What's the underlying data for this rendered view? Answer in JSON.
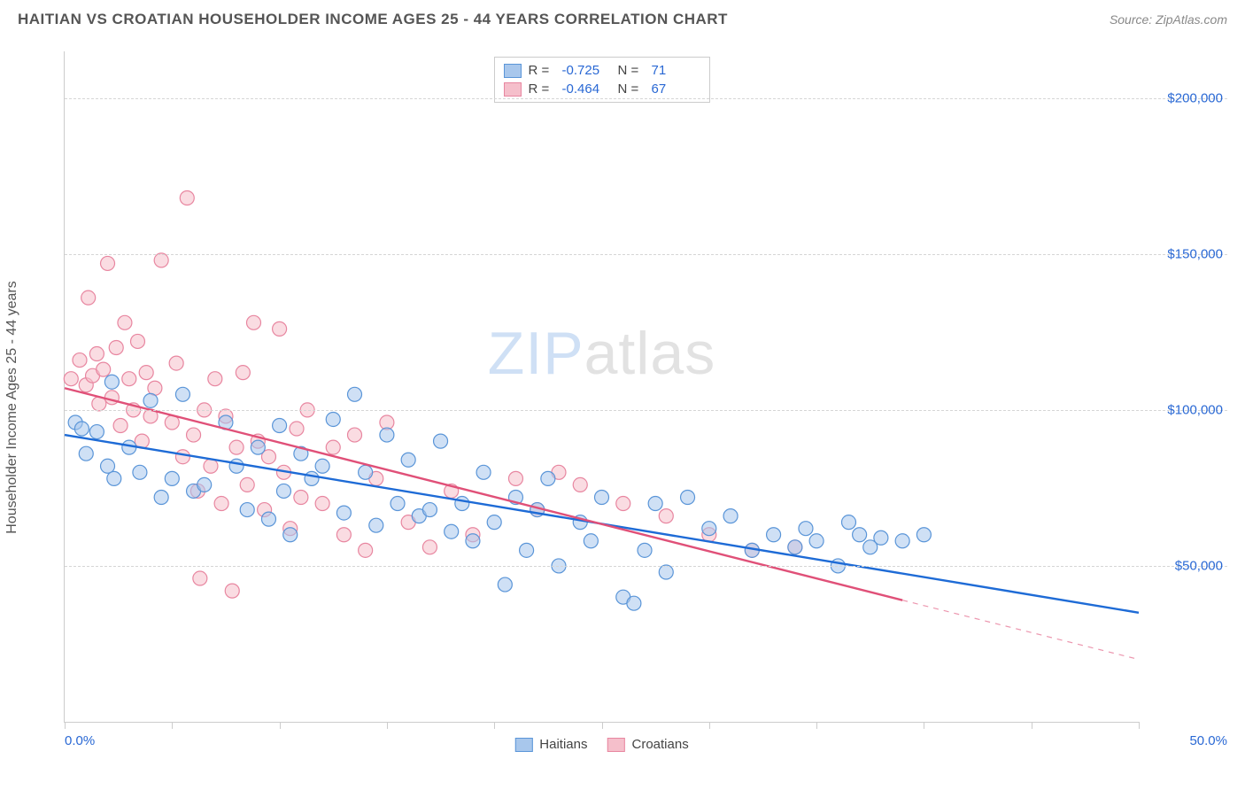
{
  "header": {
    "title": "HAITIAN VS CROATIAN HOUSEHOLDER INCOME AGES 25 - 44 YEARS CORRELATION CHART",
    "source_prefix": "Source: ",
    "source_name": "ZipAtlas.com"
  },
  "watermark": {
    "zip": "ZIP",
    "atlas": "atlas"
  },
  "chart": {
    "type": "scatter",
    "ylabel": "Householder Income Ages 25 - 44 years",
    "xlim": [
      0,
      50
    ],
    "ylim": [
      0,
      215000
    ],
    "x_min_label": "0.0%",
    "x_max_label": "50.0%",
    "x_ticks": [
      0,
      5,
      10,
      15,
      20,
      25,
      30,
      35,
      40,
      45,
      50
    ],
    "y_gridlines": [
      {
        "value": 50000,
        "label": "$50,000"
      },
      {
        "value": 100000,
        "label": "$100,000"
      },
      {
        "value": 150000,
        "label": "$150,000"
      },
      {
        "value": 200000,
        "label": "$200,000"
      }
    ],
    "grid_color": "#d5d5d5",
    "background_color": "#ffffff",
    "label_color": "#2968d4",
    "axis_color": "#cccccc",
    "marker_radius": 8,
    "marker_opacity": 0.55,
    "marker_stroke_width": 1.2,
    "line_width": 2.4,
    "title_fontsize": 17,
    "label_fontsize": 16,
    "tick_fontsize": 15
  },
  "series": [
    {
      "name": "Haitians",
      "fill_color": "#a8c7ec",
      "stroke_color": "#5a95d8",
      "line_color": "#1e6bd6",
      "R": "-0.725",
      "N": "71",
      "regression": {
        "x1": 0,
        "y1": 92000,
        "x2": 50,
        "y2": 35000
      },
      "dashed_extension": null,
      "points": [
        [
          0.5,
          96000
        ],
        [
          0.8,
          94000
        ],
        [
          1.0,
          86000
        ],
        [
          1.5,
          93000
        ],
        [
          2.0,
          82000
        ],
        [
          2.2,
          109000
        ],
        [
          2.3,
          78000
        ],
        [
          3.0,
          88000
        ],
        [
          3.5,
          80000
        ],
        [
          4.0,
          103000
        ],
        [
          4.5,
          72000
        ],
        [
          5.0,
          78000
        ],
        [
          5.5,
          105000
        ],
        [
          6.0,
          74000
        ],
        [
          6.5,
          76000
        ],
        [
          7.5,
          96000
        ],
        [
          8.0,
          82000
        ],
        [
          8.5,
          68000
        ],
        [
          9.0,
          88000
        ],
        [
          9.5,
          65000
        ],
        [
          10.0,
          95000
        ],
        [
          10.2,
          74000
        ],
        [
          10.5,
          60000
        ],
        [
          11.0,
          86000
        ],
        [
          11.5,
          78000
        ],
        [
          12.0,
          82000
        ],
        [
          12.5,
          97000
        ],
        [
          13.0,
          67000
        ],
        [
          13.5,
          105000
        ],
        [
          14.0,
          80000
        ],
        [
          14.5,
          63000
        ],
        [
          15.0,
          92000
        ],
        [
          15.5,
          70000
        ],
        [
          16.0,
          84000
        ],
        [
          16.5,
          66000
        ],
        [
          17.0,
          68000
        ],
        [
          17.5,
          90000
        ],
        [
          18.0,
          61000
        ],
        [
          18.5,
          70000
        ],
        [
          19.0,
          58000
        ],
        [
          19.5,
          80000
        ],
        [
          20.0,
          64000
        ],
        [
          20.5,
          44000
        ],
        [
          21.0,
          72000
        ],
        [
          21.5,
          55000
        ],
        [
          22.0,
          68000
        ],
        [
          22.5,
          78000
        ],
        [
          23.0,
          50000
        ],
        [
          24.0,
          64000
        ],
        [
          24.5,
          58000
        ],
        [
          25.0,
          72000
        ],
        [
          26.0,
          40000
        ],
        [
          27.0,
          55000
        ],
        [
          27.5,
          70000
        ],
        [
          28.0,
          48000
        ],
        [
          29.0,
          72000
        ],
        [
          30.0,
          62000
        ],
        [
          31.0,
          66000
        ],
        [
          32.0,
          55000
        ],
        [
          33.0,
          60000
        ],
        [
          34.0,
          56000
        ],
        [
          35.0,
          58000
        ],
        [
          36.0,
          50000
        ],
        [
          37.0,
          60000
        ],
        [
          38.0,
          59000
        ],
        [
          39.0,
          58000
        ],
        [
          40.0,
          60000
        ],
        [
          36.5,
          64000
        ],
        [
          37.5,
          56000
        ],
        [
          34.5,
          62000
        ],
        [
          26.5,
          38000
        ]
      ]
    },
    {
      "name": "Croatians",
      "fill_color": "#f5bfcb",
      "stroke_color": "#e886a0",
      "line_color": "#e05078",
      "R": "-0.464",
      "N": "67",
      "regression": {
        "x1": 0,
        "y1": 107000,
        "x2": 39,
        "y2": 39000
      },
      "dashed_extension": {
        "x1": 39,
        "y1": 39000,
        "x2": 50,
        "y2": 20000
      },
      "points": [
        [
          0.3,
          110000
        ],
        [
          0.7,
          116000
        ],
        [
          1.0,
          108000
        ],
        [
          1.1,
          136000
        ],
        [
          1.3,
          111000
        ],
        [
          1.5,
          118000
        ],
        [
          1.6,
          102000
        ],
        [
          1.8,
          113000
        ],
        [
          2.0,
          147000
        ],
        [
          2.2,
          104000
        ],
        [
          2.4,
          120000
        ],
        [
          2.6,
          95000
        ],
        [
          2.8,
          128000
        ],
        [
          3.0,
          110000
        ],
        [
          3.2,
          100000
        ],
        [
          3.4,
          122000
        ],
        [
          3.6,
          90000
        ],
        [
          3.8,
          112000
        ],
        [
          4.0,
          98000
        ],
        [
          4.2,
          107000
        ],
        [
          4.5,
          148000
        ],
        [
          5.0,
          96000
        ],
        [
          5.2,
          115000
        ],
        [
          5.5,
          85000
        ],
        [
          5.7,
          168000
        ],
        [
          6.0,
          92000
        ],
        [
          6.2,
          74000
        ],
        [
          6.5,
          100000
        ],
        [
          6.8,
          82000
        ],
        [
          7.0,
          110000
        ],
        [
          7.3,
          70000
        ],
        [
          7.5,
          98000
        ],
        [
          7.8,
          42000
        ],
        [
          6.3,
          46000
        ],
        [
          8.0,
          88000
        ],
        [
          8.3,
          112000
        ],
        [
          8.5,
          76000
        ],
        [
          8.8,
          128000
        ],
        [
          9.0,
          90000
        ],
        [
          9.3,
          68000
        ],
        [
          9.5,
          85000
        ],
        [
          10.0,
          126000
        ],
        [
          10.2,
          80000
        ],
        [
          10.5,
          62000
        ],
        [
          10.8,
          94000
        ],
        [
          11.0,
          72000
        ],
        [
          11.3,
          100000
        ],
        [
          12.0,
          70000
        ],
        [
          12.5,
          88000
        ],
        [
          13.0,
          60000
        ],
        [
          13.5,
          92000
        ],
        [
          14.0,
          55000
        ],
        [
          14.5,
          78000
        ],
        [
          15.0,
          96000
        ],
        [
          16.0,
          64000
        ],
        [
          17.0,
          56000
        ],
        [
          18.0,
          74000
        ],
        [
          19.0,
          60000
        ],
        [
          21.0,
          78000
        ],
        [
          22.0,
          68000
        ],
        [
          23.0,
          80000
        ],
        [
          24.0,
          76000
        ],
        [
          26.0,
          70000
        ],
        [
          28.0,
          66000
        ],
        [
          30.0,
          60000
        ],
        [
          32.0,
          55000
        ],
        [
          34.0,
          56000
        ]
      ]
    }
  ],
  "top_legend": {
    "R_prefix": "R =",
    "N_prefix": "N ="
  },
  "bottom_legend": {
    "items": [
      "Haitians",
      "Croatians"
    ]
  }
}
